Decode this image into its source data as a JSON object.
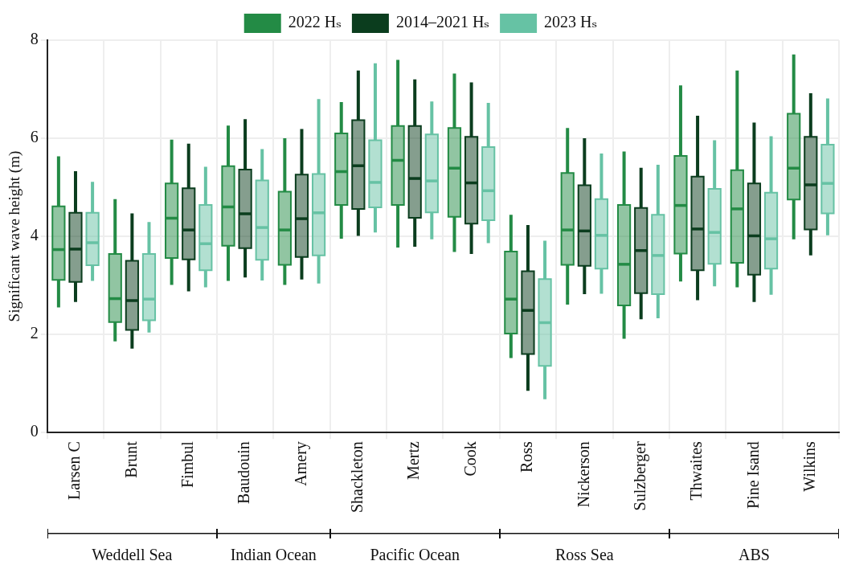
{
  "chart_data": {
    "type": "box",
    "ylabel": "Significant wave height (m)",
    "categories": [
      "Larsen C",
      "Brunt",
      "Fimbul",
      "Baudouin",
      "Amery",
      "Shackleton",
      "Mertz",
      "Cook",
      "Ross",
      "Nickerson",
      "Sulzberger",
      "Thwaites",
      "Pine Isand",
      "Wilkins"
    ],
    "ylim": [
      0,
      8
    ],
    "yticks": [
      0,
      2,
      4,
      6,
      8
    ],
    "grid": true,
    "legend": "top",
    "annotations": [
      "Weddell Sea",
      "Indian Ocean",
      "Pacific Ocean",
      "Ross Sea",
      "ABS"
    ],
    "series": [
      {
        "name": "2022 Hₛ",
        "color": "#238b45",
        "boxes": [
          {
            "low": 2.55,
            "q1": 3.11,
            "median": 3.73,
            "q3": 4.61,
            "high": 5.63
          },
          {
            "low": 1.86,
            "q1": 2.25,
            "median": 2.73,
            "q3": 3.64,
            "high": 4.76
          },
          {
            "low": 3.01,
            "q1": 3.56,
            "median": 4.37,
            "q3": 5.08,
            "high": 5.97
          },
          {
            "low": 3.09,
            "q1": 3.81,
            "median": 4.6,
            "q3": 5.43,
            "high": 6.26
          },
          {
            "low": 3.01,
            "q1": 3.42,
            "median": 4.13,
            "q3": 4.91,
            "high": 6.0
          },
          {
            "low": 3.95,
            "q1": 4.64,
            "median": 5.32,
            "q3": 6.1,
            "high": 6.74
          },
          {
            "low": 3.77,
            "q1": 4.64,
            "median": 5.55,
            "q3": 6.25,
            "high": 7.6
          },
          {
            "low": 3.68,
            "q1": 4.4,
            "median": 5.39,
            "q3": 6.21,
            "high": 7.32
          },
          {
            "low": 1.52,
            "q1": 2.02,
            "median": 2.72,
            "q3": 3.69,
            "high": 4.44
          },
          {
            "low": 2.61,
            "q1": 3.42,
            "median": 4.13,
            "q3": 5.29,
            "high": 6.21
          },
          {
            "low": 1.91,
            "q1": 2.59,
            "median": 3.43,
            "q3": 4.64,
            "high": 5.73
          },
          {
            "low": 3.08,
            "q1": 3.65,
            "median": 4.63,
            "q3": 5.64,
            "high": 7.08
          },
          {
            "low": 2.96,
            "q1": 3.46,
            "median": 4.56,
            "q3": 5.35,
            "high": 7.38
          },
          {
            "low": 3.94,
            "q1": 4.75,
            "median": 5.39,
            "q3": 6.5,
            "high": 7.71
          }
        ]
      },
      {
        "name": "2014–2021 Hₛ",
        "color": "#0b3d1e",
        "boxes": [
          {
            "low": 2.66,
            "q1": 3.07,
            "median": 3.74,
            "q3": 4.48,
            "high": 5.33
          },
          {
            "low": 1.71,
            "q1": 2.09,
            "median": 2.69,
            "q3": 3.5,
            "high": 4.47
          },
          {
            "low": 2.88,
            "q1": 3.53,
            "median": 4.13,
            "q3": 4.98,
            "high": 5.89
          },
          {
            "low": 3.16,
            "q1": 3.76,
            "median": 4.46,
            "q3": 5.36,
            "high": 6.39
          },
          {
            "low": 3.12,
            "q1": 3.58,
            "median": 4.36,
            "q3": 5.26,
            "high": 6.19
          },
          {
            "low": 4.01,
            "q1": 4.56,
            "median": 5.44,
            "q3": 6.37,
            "high": 7.38
          },
          {
            "low": 3.79,
            "q1": 4.38,
            "median": 5.18,
            "q3": 6.25,
            "high": 7.2
          },
          {
            "low": 3.64,
            "q1": 4.26,
            "median": 5.09,
            "q3": 6.03,
            "high": 7.14
          },
          {
            "low": 0.85,
            "q1": 1.6,
            "median": 2.49,
            "q3": 3.29,
            "high": 4.23
          },
          {
            "low": 2.82,
            "q1": 3.4,
            "median": 4.11,
            "q3": 5.04,
            "high": 6.0
          },
          {
            "low": 2.31,
            "q1": 2.84,
            "median": 3.71,
            "q3": 4.58,
            "high": 5.4
          },
          {
            "low": 2.7,
            "q1": 3.31,
            "median": 4.15,
            "q3": 5.22,
            "high": 6.46
          },
          {
            "low": 2.66,
            "q1": 3.22,
            "median": 4.01,
            "q3": 5.08,
            "high": 6.32
          },
          {
            "low": 3.61,
            "q1": 4.14,
            "median": 5.05,
            "q3": 6.03,
            "high": 6.92
          }
        ]
      },
      {
        "name": "2023 Hₛ",
        "color": "#66c2a4",
        "boxes": [
          {
            "low": 3.09,
            "q1": 3.41,
            "median": 3.87,
            "q3": 4.48,
            "high": 5.11
          },
          {
            "low": 2.04,
            "q1": 2.29,
            "median": 2.72,
            "q3": 3.64,
            "high": 4.29
          },
          {
            "low": 2.96,
            "q1": 3.31,
            "median": 3.85,
            "q3": 4.64,
            "high": 5.42
          },
          {
            "low": 3.1,
            "q1": 3.52,
            "median": 4.18,
            "q3": 5.14,
            "high": 5.78
          },
          {
            "low": 3.04,
            "q1": 3.61,
            "median": 4.48,
            "q3": 5.27,
            "high": 6.8
          },
          {
            "low": 4.08,
            "q1": 4.59,
            "median": 5.1,
            "q3": 5.96,
            "high": 7.53
          },
          {
            "low": 3.94,
            "q1": 4.49,
            "median": 5.13,
            "q3": 6.08,
            "high": 6.75
          },
          {
            "low": 3.86,
            "q1": 4.33,
            "median": 4.93,
            "q3": 5.82,
            "high": 6.72
          },
          {
            "low": 0.68,
            "q1": 1.36,
            "median": 2.24,
            "q3": 3.13,
            "high": 3.91
          },
          {
            "low": 2.83,
            "q1": 3.34,
            "median": 4.02,
            "q3": 4.76,
            "high": 5.69
          },
          {
            "low": 2.33,
            "q1": 2.82,
            "median": 3.61,
            "q3": 4.44,
            "high": 5.46
          },
          {
            "low": 2.98,
            "q1": 3.44,
            "median": 4.08,
            "q3": 4.97,
            "high": 5.96
          },
          {
            "low": 2.81,
            "q1": 3.34,
            "median": 3.95,
            "q3": 4.89,
            "high": 6.04
          },
          {
            "low": 4.02,
            "q1": 4.47,
            "median": 5.08,
            "q3": 5.87,
            "high": 6.81
          }
        ]
      }
    ]
  }
}
